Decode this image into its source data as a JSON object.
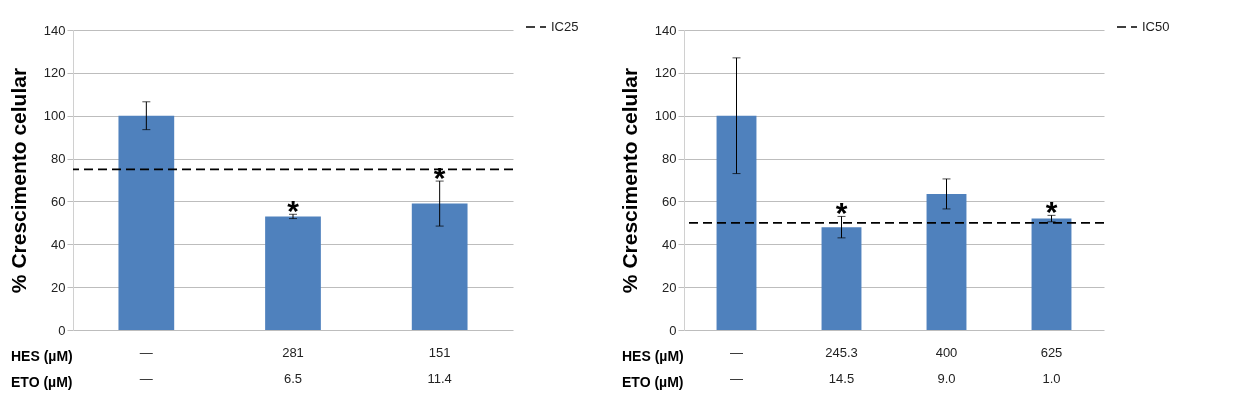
{
  "chart_data": [
    {
      "type": "bar",
      "ylabel": "% Crescimento celular",
      "categories": [
        "—\n—",
        "281\n6.5",
        "151\n11.4"
      ],
      "values": [
        100,
        53,
        59
      ],
      "errors": [
        6.5,
        1,
        10.5
      ],
      "color": "#4f81bd",
      "ylim": [
        0,
        140
      ],
      "yticks": [
        0,
        20,
        40,
        60,
        80,
        100,
        120,
        140
      ],
      "grid": "y",
      "legend": "top right",
      "ref_lines": [
        {
          "axis": "y",
          "value": 75,
          "label": "IC25",
          "line_style": "dashed"
        }
      ],
      "annotations": [
        "HES (µM)",
        "ETO (µM)",
        {
          "text": "*",
          "x": "281\n6.5",
          "y": 54
        },
        {
          "text": "*",
          "x": "151\n11.4",
          "y": 69.5
        }
      ]
    },
    {
      "type": "bar",
      "ylabel": "% Crescimento celular",
      "categories": [
        "—\n—",
        "245.3\n14.5",
        "400\n9.0",
        "625\n1.0"
      ],
      "values": [
        100,
        48,
        63.5,
        52
      ],
      "errors": [
        27,
        5,
        7,
        1.5
      ],
      "color": "#4f81bd",
      "ylim": [
        0,
        140
      ],
      "yticks": [
        0,
        20,
        40,
        60,
        80,
        100,
        120,
        140
      ],
      "grid": "y",
      "legend": "top right",
      "ref_lines": [
        {
          "axis": "y",
          "value": 50,
          "label": "IC50",
          "line_style": "dashed"
        }
      ],
      "annotations": [
        "HES (µM)",
        "ETO (µM)",
        {
          "text": "*",
          "x": "245.3\n14.5",
          "y": 53
        },
        {
          "text": "*",
          "x": "625\n1.0",
          "y": 53.5
        }
      ]
    }
  ]
}
